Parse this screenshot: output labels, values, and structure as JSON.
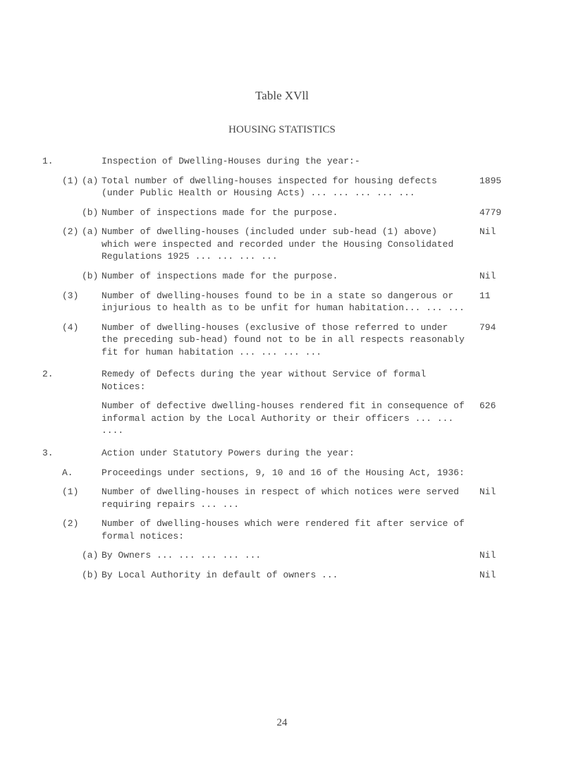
{
  "table_label": "Table  XVll",
  "heading": "HOUSING STATISTICS",
  "page_number": "24",
  "sections": {
    "s1": {
      "num": "1.",
      "head": "Inspection of Dwelling-Houses during the year:-",
      "i1": {
        "num": "(1)",
        "a": {
          "label": "(a)",
          "text": "Total number of dwelling-houses inspected for housing defects (under Public Health or Housing Acts) ...    ...    ...    ...    ...",
          "value": "1895"
        },
        "b": {
          "label": "(b)",
          "text": "Number of inspections made for the purpose.",
          "value": "4779"
        }
      },
      "i2": {
        "num": "(2)",
        "a": {
          "label": "(a)",
          "text": "Number of dwelling-houses (included under sub-head (1) above) which were inspected and recorded under the Housing Consolidated Regulations 1925    ...    ...    ...    ...",
          "value": "Nil"
        },
        "b": {
          "label": "(b)",
          "text": "Number of inspections made for the purpose.",
          "value": "Nil"
        }
      },
      "i3": {
        "num": "(3)",
        "text": "Number of dwelling-houses found to be in a state so dangerous or injurious to health as to be unfit for human habitation...    ...    ...",
        "value": "11"
      },
      "i4": {
        "num": "(4)",
        "text": "Number of dwelling-houses (exclusive of those referred to under the preceding sub-head) found not to be in all respects reasonably fit for human habitation  ...    ...    ...    ...",
        "value": "794"
      }
    },
    "s2": {
      "num": "2.",
      "head": "Remedy of Defects during the year without Service of formal Notices:",
      "p1": {
        "text": "Number of defective dwelling-houses rendered fit in consequence of informal action by the Local Authority or their officers      ...    ...    ....",
        "value": "626"
      }
    },
    "s3": {
      "num": "3.",
      "head": "Action under Statutory Powers during the year:",
      "A": {
        "label": "A.",
        "text": "Proceedings under sections, 9, 10 and 16 of the Housing Act, 1936:"
      },
      "i1": {
        "num": "(1)",
        "text": "Number of dwelling-houses in respect of which notices were served requiring repairs     ...    ...",
        "value": "Nil"
      },
      "i2": {
        "num": "(2)",
        "text": "Number of dwelling-houses which were rendered fit after service of formal notices:"
      },
      "i2a": {
        "label": "(a)",
        "text": "By Owners ...    ...    ...    ...    ...",
        "value": "Nil"
      },
      "i2b": {
        "label": "(b)",
        "text": "By Local Authority in default of owners   ...",
        "value": "Nil"
      }
    }
  }
}
